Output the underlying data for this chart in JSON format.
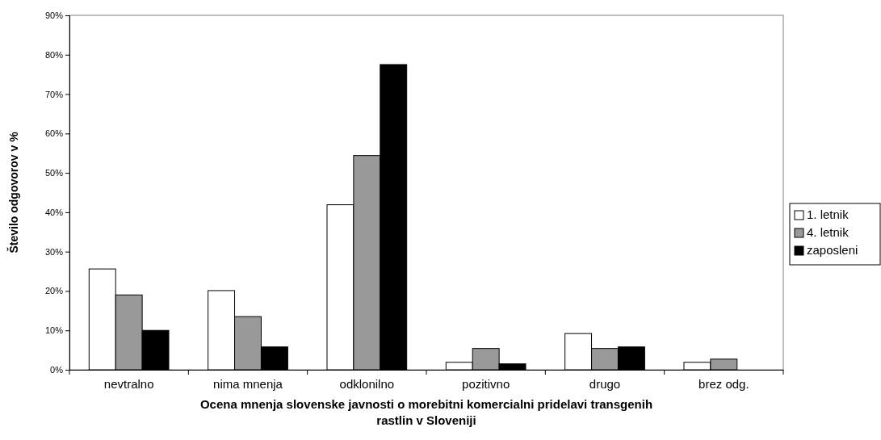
{
  "chart_data": {
    "type": "bar",
    "xlabel": "Ocena mnenja slovenske javnosti o morebitni komercialni pridelavi transgenih rastlin v Sloveniji",
    "ylabel": "Število odgovorov v %",
    "categories": [
      "nevtralno",
      "nima mnenja",
      "odklonilno",
      "pozitivno",
      "drugo",
      "brez odg."
    ],
    "series": [
      {
        "name": "1. letnik",
        "color": "#ffffff",
        "values": [
          25.6,
          20.1,
          41.9,
          1.9,
          9.2,
          1.9
        ]
      },
      {
        "name": "4. letnik",
        "color": "#999999",
        "values": [
          19.0,
          13.5,
          54.4,
          5.4,
          5.4,
          2.7
        ]
      },
      {
        "name": "zaposleni",
        "color": "#000000",
        "values": [
          10.0,
          5.8,
          77.5,
          1.5,
          5.8,
          0
        ]
      }
    ],
    "ylim": [
      0,
      90
    ],
    "yticks": [
      {
        "value": 0,
        "label": "0%"
      },
      {
        "value": 10,
        "label": "10%"
      },
      {
        "value": 20,
        "label": "20%"
      },
      {
        "value": 30,
        "label": "30%"
      },
      {
        "value": 40,
        "label": "40%"
      },
      {
        "value": 50,
        "label": "50%"
      },
      {
        "value": 60,
        "label": "60%"
      },
      {
        "value": 70,
        "label": "70%"
      },
      {
        "value": 80,
        "label": "80%"
      },
      {
        "value": 90,
        "label": "90%"
      }
    ],
    "grid": false,
    "legend": "right"
  }
}
